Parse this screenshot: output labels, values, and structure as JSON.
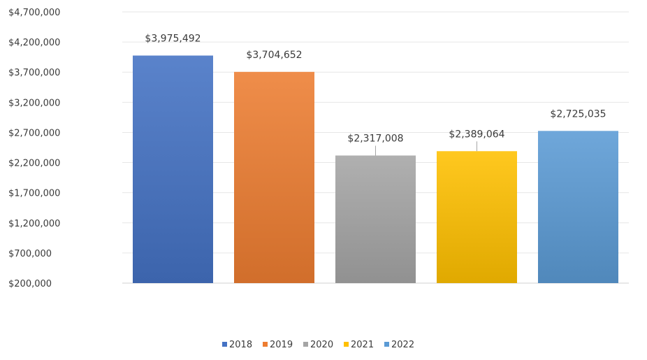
{
  "chart_data": {
    "type": "bar",
    "title": "",
    "xlabel": "",
    "ylabel": "",
    "categories": [
      "2018",
      "2019",
      "2020",
      "2021",
      "2022"
    ],
    "values": [
      3975492,
      3704652,
      2317008,
      2389064,
      2725035
    ],
    "data_labels": [
      "$3,975,492",
      "$3,704,652",
      "$2,317,008",
      "$2,389,064",
      "$2,725,035"
    ],
    "ylim": [
      200000,
      4700000
    ],
    "yticks": [
      200000,
      700000,
      1200000,
      1700000,
      2200000,
      2700000,
      3200000,
      3700000,
      4200000,
      4700000
    ],
    "ytick_labels": [
      "$200,000",
      "$700,000",
      "$1,200,000",
      "$1,700,000",
      "$2,200,000",
      "$2,700,000",
      "$3,200,000",
      "$3,700,000",
      "$4,200,000",
      "$4,700,000"
    ],
    "colors": [
      "#4472c4",
      "#ed7d31",
      "#a5a5a5",
      "#ffc000",
      "#5b9bd5"
    ],
    "grid": true,
    "legend": {
      "position": "bottom",
      "entries": [
        "2018",
        "2019",
        "2020",
        "2021",
        "2022"
      ]
    }
  }
}
